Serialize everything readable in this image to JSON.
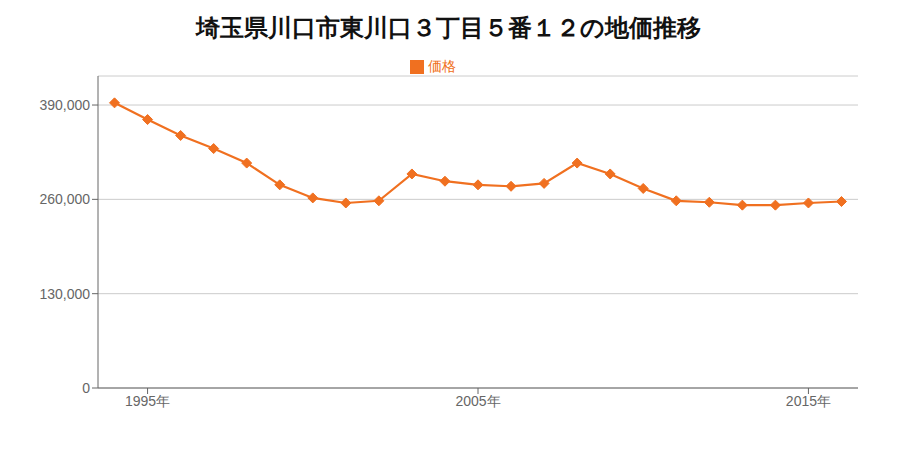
{
  "chart_data": {
    "type": "line",
    "title": "埼玉県川口市東川口３丁目５番１２の地価推移",
    "x": [
      1994,
      1995,
      1996,
      1997,
      1998,
      1999,
      2000,
      2001,
      2002,
      2003,
      2004,
      2005,
      2006,
      2007,
      2008,
      2009,
      2010,
      2011,
      2012,
      2013,
      2014,
      2015,
      2016
    ],
    "series": [
      {
        "name": "価格",
        "color": "#f07020",
        "marker": "diamond",
        "values": [
          393000,
          370000,
          348000,
          330000,
          310000,
          280000,
          262000,
          255000,
          258000,
          295000,
          285000,
          280000,
          278000,
          282000,
          310000,
          295000,
          275000,
          258000,
          256000,
          252000,
          252000,
          255000,
          257000
        ]
      }
    ],
    "xlim": [
      1993.5,
      2016.5
    ],
    "xticks": [
      {
        "value": 1995,
        "label": "1995年"
      },
      {
        "value": 2005,
        "label": "2005年"
      },
      {
        "value": 2015,
        "label": "2015年"
      }
    ],
    "ylim": [
      0,
      430000
    ],
    "yticks": [
      0,
      {
        "value": 130000,
        "label": "130,000"
      },
      {
        "value": 260000,
        "label": "260,000"
      },
      {
        "value": 390000,
        "label": "390,000"
      }
    ],
    "grid": true,
    "legend": "top"
  }
}
